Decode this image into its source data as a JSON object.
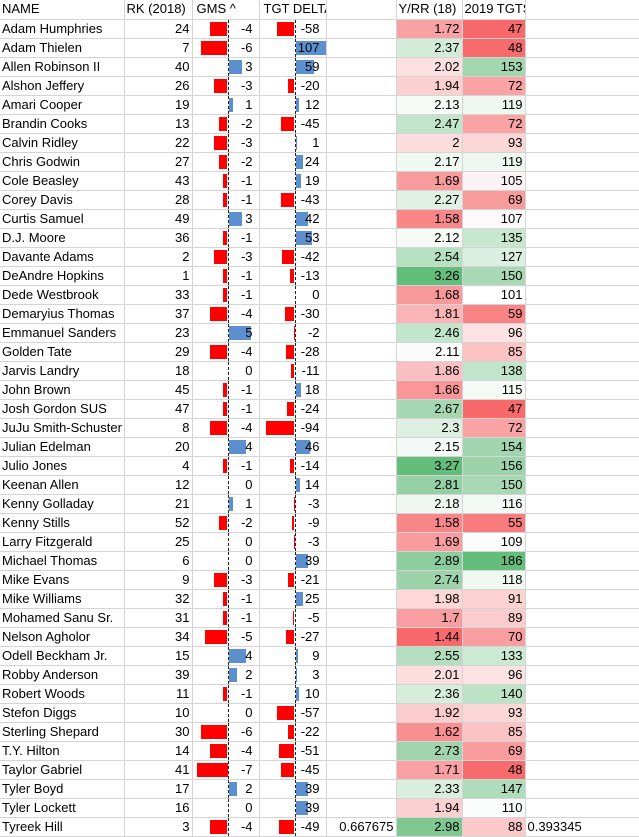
{
  "header": {
    "name": "NAME",
    "rk": "RK (2018)",
    "gms": "GMS ^",
    "tgt_delta": "TGT DELTA",
    "yrr": "Y/RR (18)",
    "tgts": "2019 TGTS"
  },
  "rows": [
    {
      "name": "Adam Humphries",
      "rk": "24",
      "gms": "-4",
      "tgt": "-58",
      "yrr": "1.72",
      "tgts": "47",
      "yrr_color": "#f8a2a4",
      "tgts_color": "#f8696b"
    },
    {
      "name": "Adam Thielen",
      "rk": "7",
      "gms": "-6",
      "tgt": "107",
      "yrr": "2.37",
      "tgts": "48",
      "yrr_color": "#d3ecd9",
      "tgts_color": "#f86b6d"
    },
    {
      "name": "Allen Robinson II",
      "rk": "40",
      "gms": "3",
      "tgt": "59",
      "yrr": "2.02",
      "tgts": "153",
      "yrr_color": "#fce0e1",
      "tgts_color": "#a2d6ae"
    },
    {
      "name": "Alshon Jeffery",
      "rk": "26",
      "gms": "-3",
      "tgt": "-20",
      "yrr": "1.94",
      "tgts": "72",
      "yrr_color": "#fbd0d1",
      "tgts_color": "#f9a3a5"
    },
    {
      "name": "Amari Cooper",
      "rk": "19",
      "gms": "1",
      "tgt": "12",
      "yrr": "2.13",
      "tgts": "119",
      "yrr_color": "#f5faf6",
      "tgts_color": "#eef7f0"
    },
    {
      "name": "Brandin Cooks",
      "rk": "13",
      "gms": "-2",
      "tgt": "-45",
      "yrr": "2.47",
      "tgts": "72",
      "yrr_color": "#c1e5ca",
      "tgts_color": "#f9a3a5"
    },
    {
      "name": "Calvin Ridley",
      "rk": "22",
      "gms": "-3",
      "tgt": "1",
      "yrr": "2",
      "tgts": "93",
      "yrr_color": "#fcdcdd",
      "tgts_color": "#fcd7d8"
    },
    {
      "name": "Chris Godwin",
      "rk": "27",
      "gms": "-2",
      "tgt": "24",
      "yrr": "2.17",
      "tgts": "119",
      "yrr_color": "#f0f8f2",
      "tgts_color": "#eef7f0"
    },
    {
      "name": "Cole Beasley",
      "rk": "43",
      "gms": "-1",
      "tgt": "19",
      "yrr": "1.69",
      "tgts": "105",
      "yrr_color": "#f89c9e",
      "tgts_color": "#fdf3f4"
    },
    {
      "name": "Corey Davis",
      "rk": "28",
      "gms": "-1",
      "tgt": "-43",
      "yrr": "2.27",
      "tgts": "69",
      "yrr_color": "#e0f1e4",
      "tgts_color": "#f89c9e"
    },
    {
      "name": "Curtis Samuel",
      "rk": "49",
      "gms": "3",
      "tgt": "42",
      "yrr": "1.58",
      "tgts": "107",
      "yrr_color": "#f8878a",
      "tgts_color": "#fefafa"
    },
    {
      "name": "D.J. Moore",
      "rk": "36",
      "gms": "-1",
      "tgt": "53",
      "yrr": "2.12",
      "tgts": "135",
      "yrr_color": "#f7fbf8",
      "tgts_color": "#c7e7cf"
    },
    {
      "name": "Davante Adams",
      "rk": "2",
      "gms": "-3",
      "tgt": "-42",
      "yrr": "2.54",
      "tgts": "127",
      "yrr_color": "#b6e0c0",
      "tgts_color": "#dbefe0"
    },
    {
      "name": "DeAndre Hopkins",
      "rk": "1",
      "gms": "-1",
      "tgt": "-13",
      "yrr": "3.26",
      "tgts": "150",
      "yrr_color": "#63be7b",
      "tgts_color": "#a8d9b4"
    },
    {
      "name": "Dede Westbrook",
      "rk": "33",
      "gms": "-1",
      "tgt": "0",
      "yrr": "1.68",
      "tgts": "101",
      "yrr_color": "#f89a9c",
      "tgts_color": "#ffffff"
    },
    {
      "name": "Demaryius Thomas",
      "rk": "37",
      "gms": "-4",
      "tgt": "-30",
      "yrr": "1.81",
      "tgts": "59",
      "yrr_color": "#f9b4b6",
      "tgts_color": "#f88486"
    },
    {
      "name": "Emmanuel Sanders",
      "rk": "23",
      "gms": "5",
      "tgt": "-2",
      "yrr": "2.46",
      "tgts": "96",
      "yrr_color": "#c3e6cb",
      "tgts_color": "#fde2e3"
    },
    {
      "name": "Golden Tate",
      "rk": "29",
      "gms": "-4",
      "tgt": "-28",
      "yrr": "2.11",
      "tgts": "85",
      "yrr_color": "#f9fcfa",
      "tgts_color": "#fbc3c4"
    },
    {
      "name": "Jarvis Landry",
      "rk": "18",
      "gms": "0",
      "tgt": "-11",
      "yrr": "1.86",
      "tgts": "138",
      "yrr_color": "#fabfc1",
      "tgts_color": "#c1e5ca"
    },
    {
      "name": "John Brown",
      "rk": "45",
      "gms": "-1",
      "tgt": "18",
      "yrr": "1.66",
      "tgts": "115",
      "yrr_color": "#f89698",
      "tgts_color": "#f5faf6"
    },
    {
      "name": "Josh Gordon SUS",
      "rk": "47",
      "gms": "-1",
      "tgt": "-24",
      "yrr": "2.67",
      "tgts": "47",
      "yrr_color": "#a5d8b2",
      "tgts_color": "#f8696b"
    },
    {
      "name": "JuJu Smith-Schuster",
      "rk": "8",
      "gms": "-4",
      "tgt": "-94",
      "yrr": "2.3",
      "tgts": "72",
      "yrr_color": "#dcefe1",
      "tgts_color": "#f9a3a5"
    },
    {
      "name": "Julian Edelman",
      "rk": "20",
      "gms": "4",
      "tgt": "46",
      "yrr": "2.15",
      "tgts": "154",
      "yrr_color": "#f3f9f4",
      "tgts_color": "#a0d5ad"
    },
    {
      "name": "Julio Jones",
      "rk": "4",
      "gms": "-1",
      "tgt": "-14",
      "yrr": "3.27",
      "tgts": "156",
      "yrr_color": "#63be7b",
      "tgts_color": "#9cd3aa"
    },
    {
      "name": "Keenan Allen",
      "rk": "12",
      "gms": "0",
      "tgt": "14",
      "yrr": "2.81",
      "tgts": "150",
      "yrr_color": "#95d1a4",
      "tgts_color": "#a8d9b4"
    },
    {
      "name": "Kenny Golladay",
      "rk": "21",
      "gms": "1",
      "tgt": "-3",
      "yrr": "2.18",
      "tgts": "116",
      "yrr_color": "#eff7f1",
      "tgts_color": "#f3f9f4"
    },
    {
      "name": "Kenny Stills",
      "rk": "52",
      "gms": "-2",
      "tgt": "-9",
      "yrr": "1.58",
      "tgts": "55",
      "yrr_color": "#f8878a",
      "tgts_color": "#f87b7d"
    },
    {
      "name": "Larry Fitzgerald",
      "rk": "25",
      "gms": "0",
      "tgt": "-3",
      "yrr": "1.69",
      "tgts": "109",
      "yrr_color": "#f89c9e",
      "tgts_color": "#fbfdfb"
    },
    {
      "name": "Michael Thomas",
      "rk": "6",
      "gms": "0",
      "tgt": "39",
      "yrr": "2.89",
      "tgts": "186",
      "yrr_color": "#8ccd9d",
      "tgts_color": "#63be7b"
    },
    {
      "name": "Mike Evans",
      "rk": "9",
      "gms": "-3",
      "tgt": "-21",
      "yrr": "2.74",
      "tgts": "118",
      "yrr_color": "#9dd3ab",
      "tgts_color": "#f0f8f2"
    },
    {
      "name": "Mike Williams",
      "rk": "32",
      "gms": "-1",
      "tgt": "25",
      "yrr": "1.98",
      "tgts": "91",
      "yrr_color": "#fcd8d9",
      "tgts_color": "#fcd2d3"
    },
    {
      "name": "Mohamed Sanu Sr.",
      "rk": "31",
      "gms": "-1",
      "tgt": "-5",
      "yrr": "1.7",
      "tgts": "89",
      "yrr_color": "#f89ea0",
      "tgts_color": "#fbcccd"
    },
    {
      "name": "Nelson Agholor",
      "rk": "34",
      "gms": "-5",
      "tgt": "-27",
      "yrr": "1.44",
      "tgts": "70",
      "yrr_color": "#f8696b",
      "tgts_color": "#f99ea0"
    },
    {
      "name": "Odell Beckham Jr.",
      "rk": "15",
      "gms": "4",
      "tgt": "9",
      "yrr": "2.55",
      "tgts": "133",
      "yrr_color": "#b4dfbf",
      "tgts_color": "#cbe9d3"
    },
    {
      "name": "Robby Anderson",
      "rk": "39",
      "gms": "2",
      "tgt": "3",
      "yrr": "2.01",
      "tgts": "96",
      "yrr_color": "#fcdedf",
      "tgts_color": "#fde2e3"
    },
    {
      "name": "Robert Woods",
      "rk": "11",
      "gms": "-1",
      "tgt": "10",
      "yrr": "2.36",
      "tgts": "140",
      "yrr_color": "#d5edda",
      "tgts_color": "#bde3c6"
    },
    {
      "name": "Stefon Diggs",
      "rk": "10",
      "gms": "0",
      "tgt": "-57",
      "yrr": "1.92",
      "tgts": "93",
      "yrr_color": "#fbcccd",
      "tgts_color": "#fcd7d8"
    },
    {
      "name": "Sterling Shepard",
      "rk": "30",
      "gms": "-6",
      "tgt": "-22",
      "yrr": "1.62",
      "tgts": "85",
      "yrr_color": "#f88f91",
      "tgts_color": "#fbc3c4"
    },
    {
      "name": "T.Y. Hilton",
      "rk": "14",
      "gms": "-4",
      "tgt": "-51",
      "yrr": "2.73",
      "tgts": "69",
      "yrr_color": "#9fd4ac",
      "tgts_color": "#f89c9e"
    },
    {
      "name": "Taylor Gabriel",
      "rk": "41",
      "gms": "-7",
      "tgt": "-45",
      "yrr": "1.71",
      "tgts": "48",
      "yrr_color": "#f8a0a2",
      "tgts_color": "#f86b6d"
    },
    {
      "name": "Tyler Boyd",
      "rk": "17",
      "gms": "2",
      "tgt": "39",
      "yrr": "2.33",
      "tgts": "147",
      "yrr_color": "#d9eedf",
      "tgts_color": "#afdcba"
    },
    {
      "name": "Tyler Lockett",
      "rk": "16",
      "gms": "0",
      "tgt": "39",
      "yrr": "1.94",
      "tgts": "110",
      "yrr_color": "#fbd0d1",
      "tgts_color": "#fafdfb"
    },
    {
      "name": "Tyreek Hill",
      "rk": "3",
      "gms": "-4",
      "tgt": "-49",
      "yrr": "2.98",
      "tgts": "88",
      "yrr_color": "#7fc892",
      "tgts_color": "#fbc9ca",
      "extra1": "0.667675",
      "extra2": "0.393345"
    }
  ]
}
